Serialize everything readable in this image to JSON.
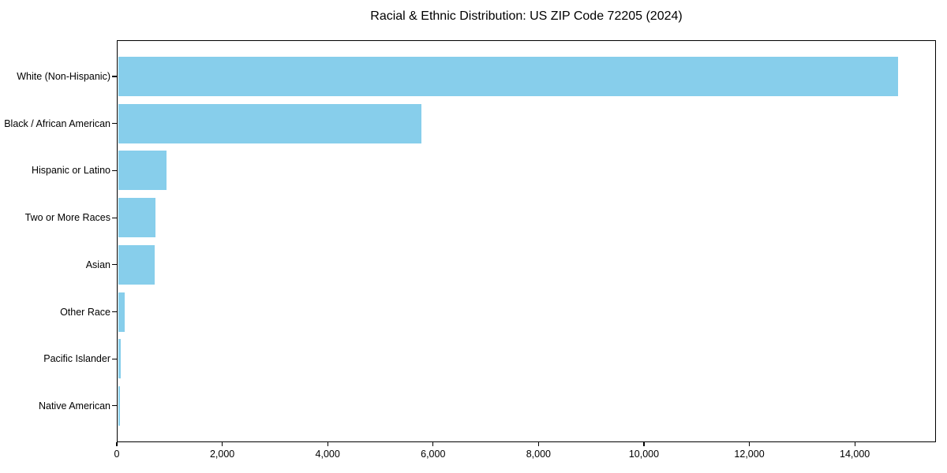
{
  "title": "Racial & Ethnic Distribution: US ZIP Code 72205 (2024)",
  "chart_data": {
    "type": "bar",
    "orientation": "horizontal",
    "title": "Racial & Ethnic Distribution: US ZIP Code 72205 (2024)",
    "xlabel": "",
    "ylabel": "",
    "categories": [
      "White (Non-Hispanic)",
      "Black / African American",
      "Hispanic or Latino",
      "Two or More Races",
      "Asian",
      "Other Race",
      "Pacific Islander",
      "Native American"
    ],
    "values": [
      14800,
      5750,
      920,
      715,
      700,
      120,
      55,
      40
    ],
    "xlim": [
      0,
      15540
    ],
    "x_ticks": [
      0,
      2000,
      4000,
      6000,
      8000,
      10000,
      12000,
      14000
    ],
    "x_tick_labels": [
      "0",
      "2,000",
      "4,000",
      "6,000",
      "8,000",
      "10,000",
      "12,000",
      "14,000"
    ],
    "grid": false,
    "legend": null,
    "bar_color": "#87CEEB"
  },
  "colors": {
    "bar": "#87CEEB",
    "axis": "#000000",
    "text": "#000000",
    "background": "#ffffff"
  }
}
